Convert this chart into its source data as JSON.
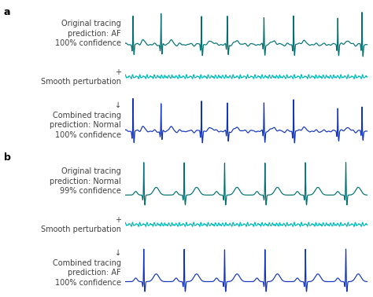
{
  "panel_a_label": "a",
  "panel_b_label": "b",
  "color_teal": "#007070",
  "color_cyan": "#00BBBB",
  "color_blue": "#1133BB",
  "background": "#FFFFFF",
  "text_color": "#404040",
  "label_fontsize": 7.0,
  "panel_label_fontsize": 9,
  "row_labels_a": [
    "Original tracing\nprediction: AF\n100% confidence",
    "+\nSmooth perturbation",
    "↓\nCombined tracing\nprediction: Normal\n100% confidence"
  ],
  "row_labels_b": [
    "Original tracing\nprediction: Normal\n99% confidence",
    "+\nSmooth perturbation",
    "↓\nCombined tracing\nprediction: AF\n100% confidence"
  ]
}
